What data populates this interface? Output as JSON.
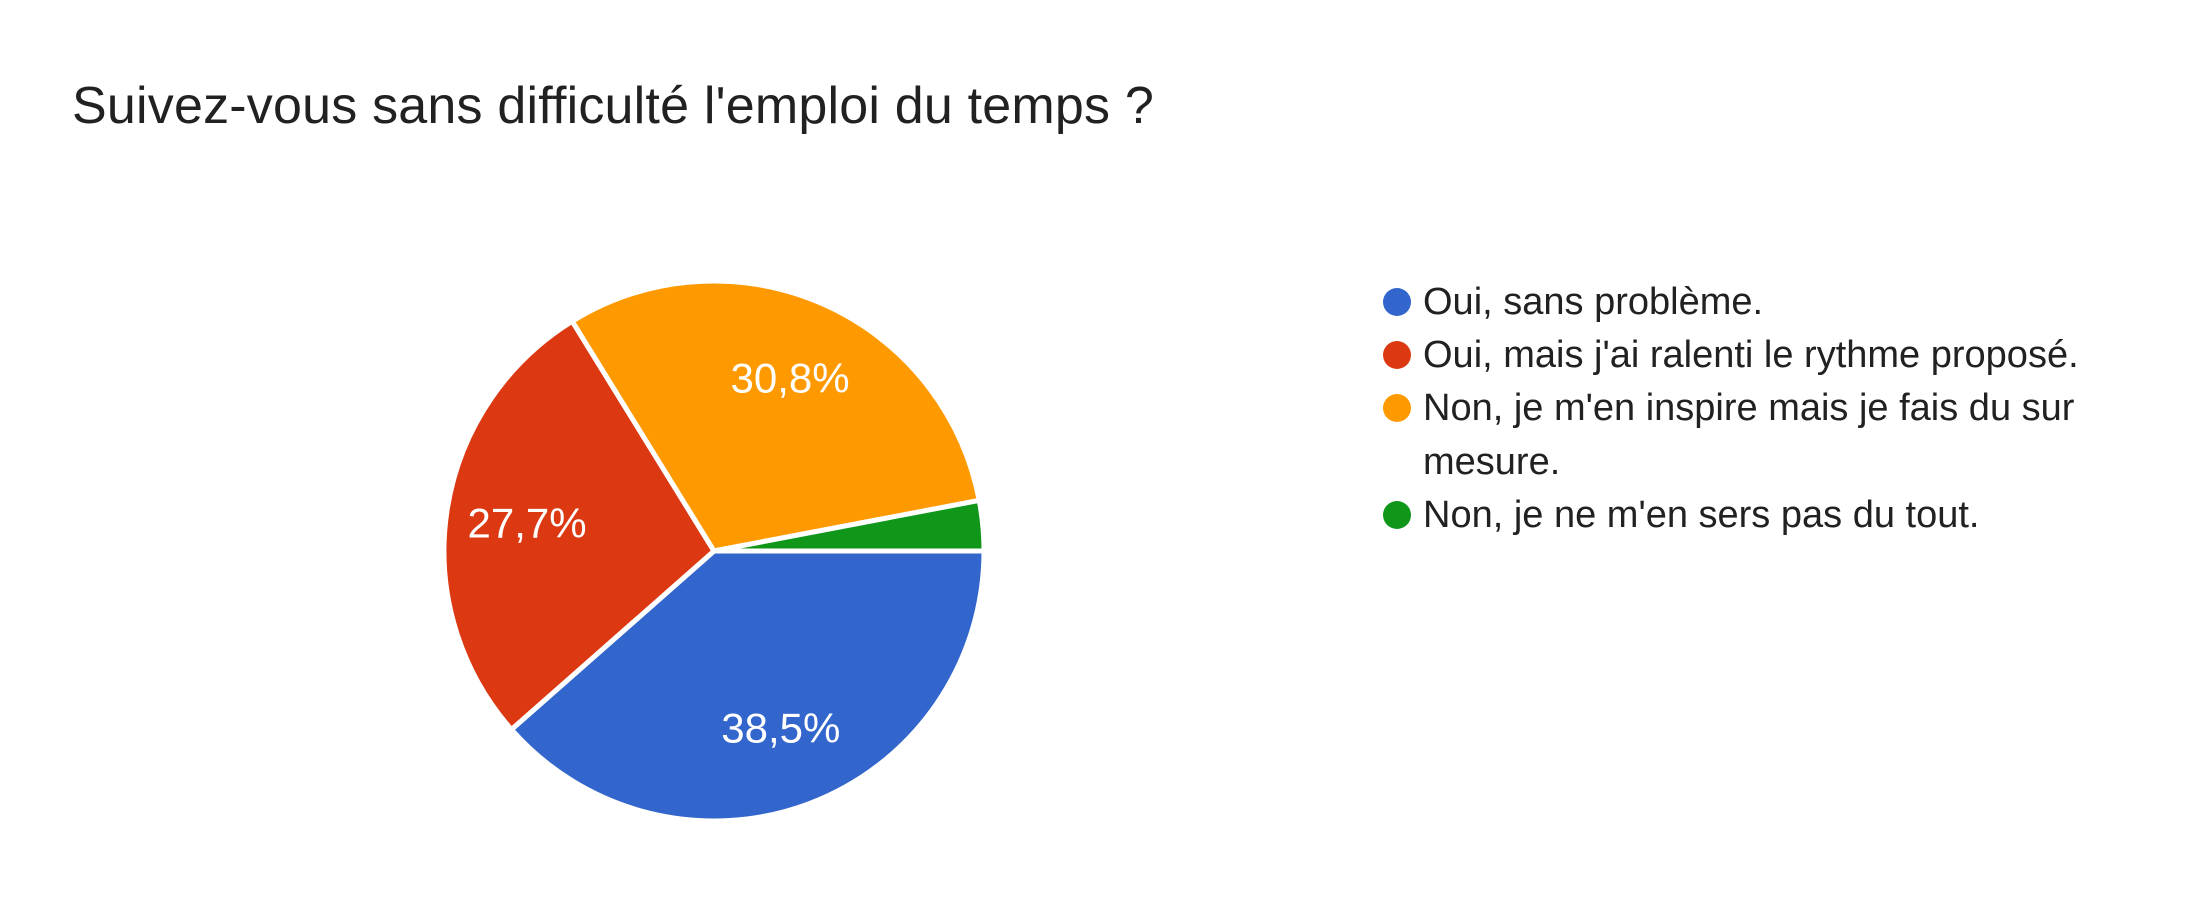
{
  "page": {
    "background_color": "#ffffff"
  },
  "chart_data": {
    "type": "pie",
    "title": "Suivez-vous sans difficulté l'emploi du temps ?",
    "title_color": "#212121",
    "start_angle_deg": 0,
    "direction": "clockwise",
    "legend_position": "right",
    "slice_separator_color": "#ffffff",
    "slice_label_color": "#ffffff",
    "slices": [
      {
        "label": "Oui, sans problème.",
        "value_pct": 38.5,
        "display_label": "38,5%",
        "color": "#3366cc"
      },
      {
        "label": "Oui, mais j'ai ralenti le rythme proposé.",
        "value_pct": 27.7,
        "display_label": "27,7%",
        "color": "#dc3912"
      },
      {
        "label": "Non, je m'en inspire mais je fais du sur mesure.",
        "value_pct": 30.8,
        "display_label": "30,8%",
        "color": "#ff9900"
      },
      {
        "label": "Non, je ne m'en sers pas du tout.",
        "value_pct": 3.0,
        "display_label": "",
        "color": "#109618"
      }
    ]
  }
}
